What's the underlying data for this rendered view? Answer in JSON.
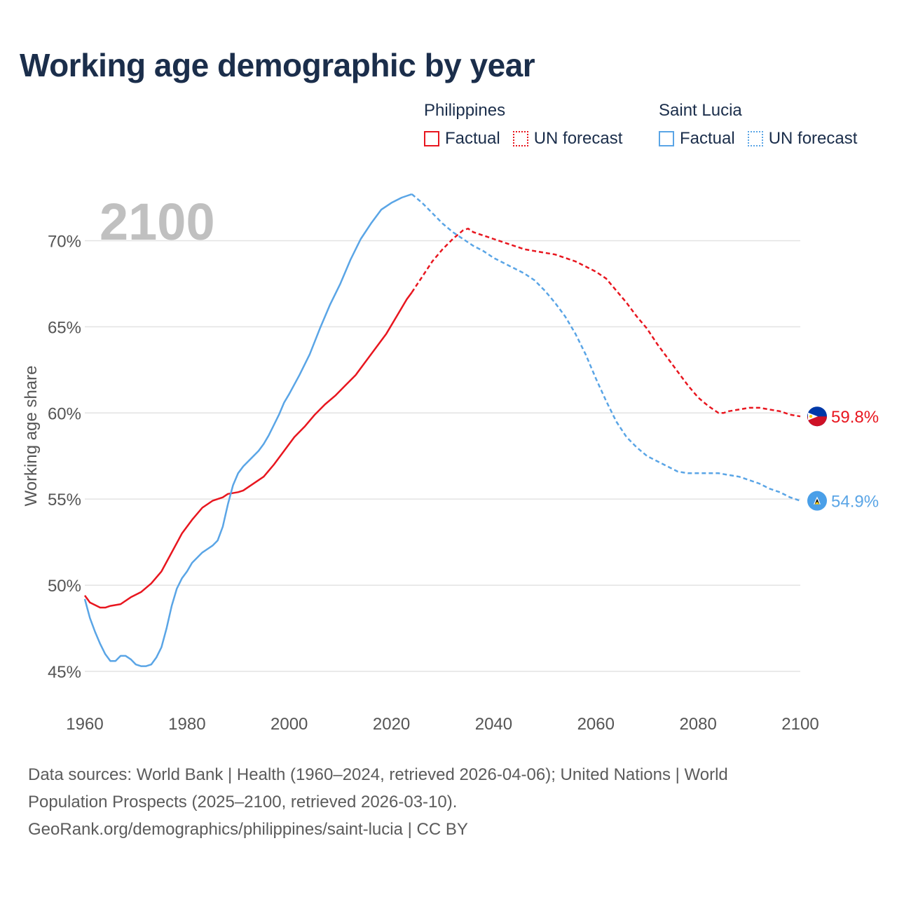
{
  "title": "Working age demographic by year",
  "legend": {
    "groups": [
      {
        "name": "Philippines",
        "color": "#e8161f",
        "factual_label": "Factual",
        "forecast_label": "UN forecast"
      },
      {
        "name": "Saint Lucia",
        "color": "#5aa5e6",
        "factual_label": "Factual",
        "forecast_label": "UN forecast"
      }
    ]
  },
  "year_overlay": "2100",
  "footer": {
    "line1": "Data sources: World Bank | Health (1960–2024, retrieved 2026-04-06); United Nations | World",
    "line2": "Population Prospects (2025–2100, retrieved 2026-03-10).",
    "line3": "GeoRank.org/demographics/philippines/saint-lucia | CC BY"
  },
  "chart_data": {
    "type": "line",
    "title": "Working age demographic by year",
    "xlabel": "",
    "ylabel": "Working age share",
    "xlim": [
      1960,
      2100
    ],
    "ylim": [
      45,
      72.5
    ],
    "x_ticks": [
      "1960",
      "1980",
      "2000",
      "2020",
      "2040",
      "2060",
      "2080",
      "2100"
    ],
    "x_tick_values": [
      1960,
      1980,
      2000,
      2020,
      2040,
      2060,
      2080,
      2100
    ],
    "y_ticks": [
      "45%",
      "50%",
      "55%",
      "60%",
      "65%",
      "70%"
    ],
    "y_tick_values": [
      45,
      50,
      55,
      60,
      65,
      70
    ],
    "grid": true,
    "forecast_start_year": 2024,
    "series": [
      {
        "name": "Philippines",
        "color": "#e8161f",
        "end_label": "59.8%",
        "flag_icon": "philippines-flag-icon",
        "x": [
          1960,
          1961,
          1963,
          1964,
          1965,
          1967,
          1969,
          1971,
          1973,
          1975,
          1977,
          1979,
          1981,
          1983,
          1985,
          1987,
          1988,
          1990,
          1991,
          1993,
          1995,
          1997,
          1999,
          2001,
          2003,
          2005,
          2007,
          2009,
          2011,
          2013,
          2015,
          2017,
          2019,
          2021,
          2023,
          2024,
          2026,
          2028,
          2030,
          2032,
          2034,
          2035,
          2036,
          2038,
          2040,
          2042,
          2044,
          2046,
          2048,
          2050,
          2052,
          2054,
          2056,
          2058,
          2060,
          2062,
          2064,
          2066,
          2068,
          2070,
          2072,
          2074,
          2076,
          2078,
          2080,
          2082,
          2084,
          2085,
          2086,
          2088,
          2090,
          2092,
          2094,
          2096,
          2098,
          2100
        ],
        "y": [
          49.4,
          49.0,
          48.7,
          48.7,
          48.8,
          48.9,
          49.3,
          49.6,
          50.1,
          50.8,
          51.9,
          53.0,
          53.8,
          54.5,
          54.9,
          55.1,
          55.3,
          55.4,
          55.5,
          55.9,
          56.3,
          57.0,
          57.8,
          58.6,
          59.2,
          59.9,
          60.5,
          61.0,
          61.6,
          62.2,
          63.0,
          63.8,
          64.6,
          65.6,
          66.6,
          67.0,
          67.9,
          68.8,
          69.5,
          70.1,
          70.6,
          70.7,
          70.5,
          70.3,
          70.1,
          69.9,
          69.7,
          69.5,
          69.4,
          69.3,
          69.2,
          69.0,
          68.8,
          68.5,
          68.2,
          67.8,
          67.1,
          66.4,
          65.6,
          64.9,
          64.0,
          63.2,
          62.4,
          61.6,
          60.9,
          60.4,
          60.0,
          60.0,
          60.1,
          60.2,
          60.3,
          60.3,
          60.2,
          60.1,
          59.9,
          59.8
        ]
      },
      {
        "name": "Saint Lucia",
        "color": "#5aa5e6",
        "end_label": "54.9%",
        "flag_icon": "saint-lucia-flag-icon",
        "x": [
          1960,
          1961,
          1962,
          1963,
          1964,
          1965,
          1966,
          1967,
          1968,
          1969,
          1970,
          1971,
          1972,
          1973,
          1974,
          1975,
          1976,
          1977,
          1978,
          1979,
          1980,
          1981,
          1982,
          1983,
          1984,
          1985,
          1986,
          1987,
          1988,
          1989,
          1990,
          1991,
          1992,
          1993,
          1994,
          1995,
          1996,
          1997,
          1998,
          1999,
          2000,
          2002,
          2004,
          2006,
          2008,
          2010,
          2012,
          2014,
          2016,
          2018,
          2020,
          2022,
          2023,
          2024,
          2026,
          2028,
          2030,
          2032,
          2034,
          2036,
          2038,
          2040,
          2042,
          2044,
          2046,
          2048,
          2050,
          2052,
          2054,
          2056,
          2058,
          2060,
          2062,
          2064,
          2066,
          2068,
          2070,
          2072,
          2074,
          2076,
          2078,
          2080,
          2082,
          2084,
          2086,
          2088,
          2090,
          2092,
          2094,
          2096,
          2098,
          2100
        ],
        "y": [
          49.2,
          48.1,
          47.3,
          46.6,
          46.0,
          45.6,
          45.6,
          45.9,
          45.9,
          45.7,
          45.4,
          45.3,
          45.3,
          45.4,
          45.8,
          46.4,
          47.5,
          48.8,
          49.8,
          50.4,
          50.8,
          51.3,
          51.6,
          51.9,
          52.1,
          52.3,
          52.6,
          53.4,
          54.7,
          55.8,
          56.5,
          56.9,
          57.2,
          57.5,
          57.8,
          58.2,
          58.7,
          59.3,
          59.9,
          60.6,
          61.1,
          62.2,
          63.4,
          64.9,
          66.3,
          67.5,
          68.9,
          70.1,
          71.0,
          71.8,
          72.2,
          72.5,
          72.6,
          72.7,
          72.2,
          71.6,
          71.0,
          70.5,
          70.1,
          69.7,
          69.4,
          69.0,
          68.7,
          68.4,
          68.1,
          67.7,
          67.1,
          66.4,
          65.6,
          64.6,
          63.4,
          62.0,
          60.7,
          59.5,
          58.6,
          58.0,
          57.5,
          57.2,
          56.9,
          56.6,
          56.5,
          56.5,
          56.5,
          56.5,
          56.4,
          56.3,
          56.1,
          55.9,
          55.6,
          55.4,
          55.1,
          54.9
        ]
      }
    ]
  }
}
